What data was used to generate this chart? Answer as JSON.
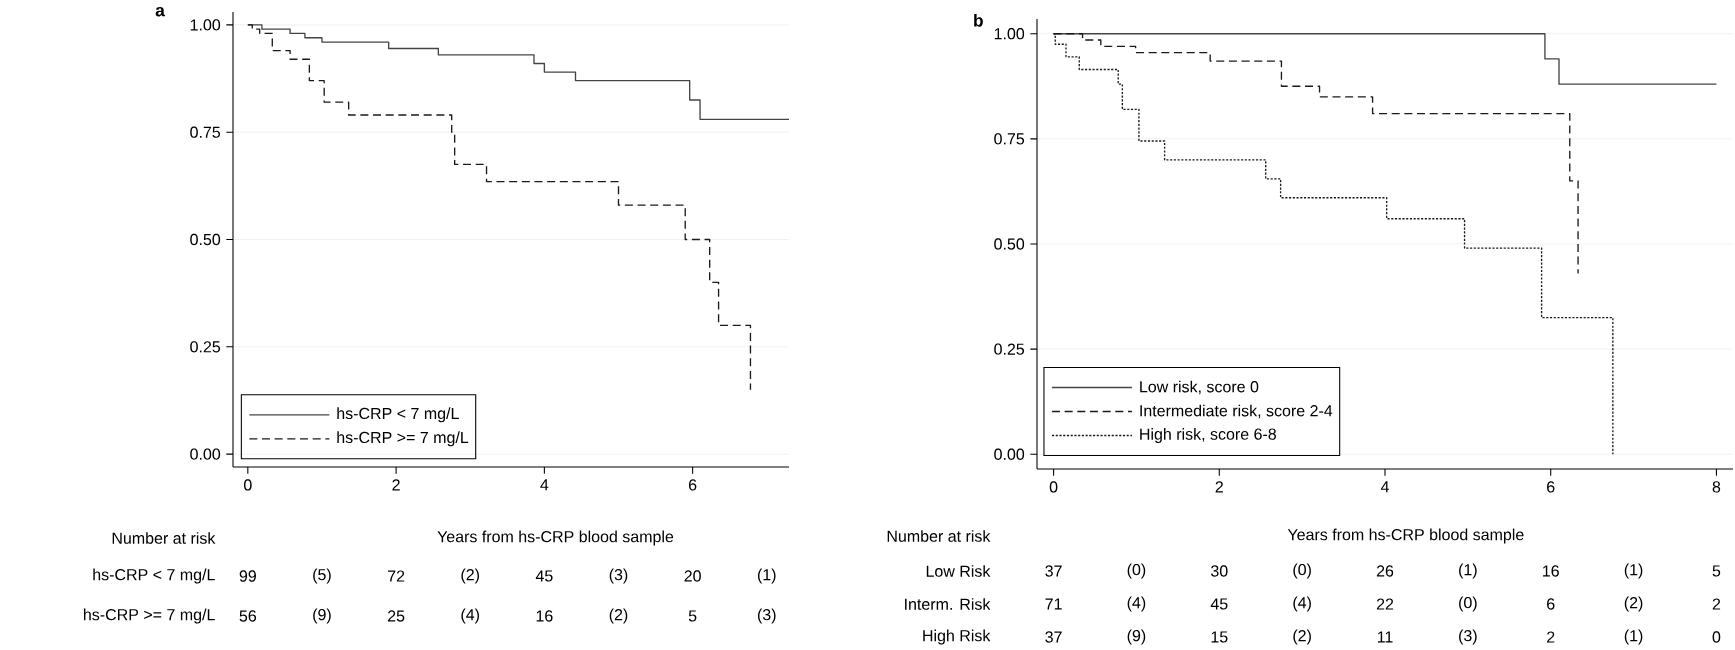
{
  "chart_data": [
    {
      "type": "step",
      "title": "a",
      "xlabel": "Years from hs-CRP blood sample",
      "xlim": [
        -0.2,
        7.3
      ],
      "ylim": [
        -0.03,
        1.03
      ],
      "xticks": [
        0,
        2,
        4,
        6
      ],
      "yticks": [
        {
          "value": 0,
          "label": "0.00"
        },
        {
          "value": 0.25,
          "label": "0.25"
        },
        {
          "value": 0.5,
          "label": "0.50"
        },
        {
          "value": 0.75,
          "label": "0.75"
        },
        {
          "value": 1,
          "label": "1.00"
        }
      ],
      "grid": "y",
      "legend": "bottom left",
      "series": [
        {
          "name": "hs-CRP < 7 mg/L",
          "color": "#444444",
          "line_style": "solid",
          "x": [
            0,
            0.19,
            0.57,
            0.77,
            1.0,
            1.9,
            2.57,
            3.86,
            4.0,
            4.42,
            5.96,
            6.1,
            7.3
          ],
          "values": [
            1,
            0.99,
            0.98,
            0.97,
            0.96,
            0.945,
            0.93,
            0.91,
            0.89,
            0.87,
            0.825,
            0.78,
            0.78
          ]
        },
        {
          "name": "hs-CRP >= 7 mg/L",
          "color": "#1a1a1a",
          "line_style": "dashed",
          "x": [
            0,
            0.06,
            0.16,
            0.33,
            0.57,
            0.83,
            1.03,
            1.36,
            2.75,
            2.79,
            3.22,
            5.0,
            5.9,
            6.23,
            6.35,
            6.78
          ],
          "values": [
            1,
            0.99,
            0.98,
            0.94,
            0.92,
            0.87,
            0.82,
            0.79,
            0.75,
            0.675,
            0.635,
            0.58,
            0.5,
            0.4,
            0.3,
            0.15
          ]
        }
      ],
      "annotations": [
        "Number at risk",
        "hs-CRP < 7 mg/L",
        "99",
        "(5)",
        "72",
        "(2)",
        "45",
        "(3)",
        "20",
        "(1)",
        "hs-CRP >= 7 mg/L",
        "56",
        "(9)",
        "25",
        "(4)",
        "16",
        "(2)",
        "5",
        "(3)"
      ]
    },
    {
      "type": "step",
      "title": "b",
      "xlabel": "Years from hs-CRP blood sample",
      "xlim": [
        -0.2,
        8.2
      ],
      "ylim": [
        -0.035,
        1.035
      ],
      "xticks": [
        0,
        2,
        4,
        6,
        8
      ],
      "yticks": [
        {
          "value": 0,
          "label": "0.00"
        },
        {
          "value": 0.25,
          "label": "0.25"
        },
        {
          "value": 0.5,
          "label": "0.50"
        },
        {
          "value": 0.75,
          "label": "0.75"
        },
        {
          "value": 1,
          "label": "1.00"
        }
      ],
      "grid": "y",
      "legend": "bottom left",
      "series": [
        {
          "name": "Low risk, score 0",
          "color": "#444444",
          "line_style": "solid",
          "x": [
            0,
            5.93,
            6.1,
            8.0
          ],
          "values": [
            1,
            0.94,
            0.88,
            0.88
          ]
        },
        {
          "name": "Intermediate risk, score 2-4",
          "color": "#1a1a1a",
          "line_style": "dashed",
          "x": [
            0,
            0.35,
            0.57,
            0.99,
            1.89,
            2.75,
            3.21,
            3.85,
            6.23,
            6.33
          ],
          "values": [
            1,
            0.985,
            0.97,
            0.955,
            0.935,
            0.875,
            0.85,
            0.81,
            0.65,
            0.43
          ]
        },
        {
          "name": "High risk, score 6-8",
          "color": "#1a1a1a",
          "line_style": "dotted",
          "x": [
            0,
            0.02,
            0.15,
            0.31,
            0.78,
            0.83,
            1.03,
            1.34,
            2.56,
            2.74,
            4.02,
            4.96,
            5.89,
            6.75
          ],
          "values": [
            1,
            0.975,
            0.945,
            0.915,
            0.88,
            0.82,
            0.745,
            0.7,
            0.655,
            0.61,
            0.56,
            0.49,
            0.325,
            0
          ]
        }
      ],
      "annotations": [
        "Number at risk",
        "Low Risk",
        "37",
        "(0)",
        "30",
        "(0)",
        "26",
        "(1)",
        "16",
        "(1)",
        "5",
        "Interm. Risk",
        "71",
        "(4)",
        "45",
        "(4)",
        "22",
        "(0)",
        "6",
        "(2)",
        "2",
        "High Risk",
        "37",
        "(9)",
        "15",
        "(2)",
        "11",
        "(3)",
        "2",
        "(1)",
        "0"
      ]
    }
  ]
}
